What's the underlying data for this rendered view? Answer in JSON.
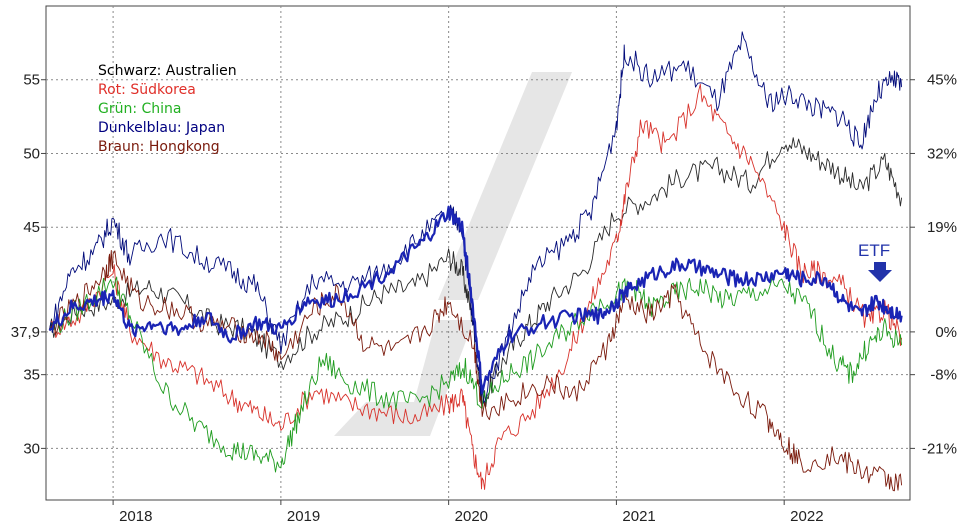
{
  "chart_data": {
    "type": "line",
    "title": "",
    "xlabel": "",
    "ylabel": "",
    "x_ticks": [
      "2018",
      "2019",
      "2020",
      "2021",
      "2022"
    ],
    "x_range": [
      2017.6,
      2022.75
    ],
    "y_range": [
      26.5,
      60
    ],
    "y_ticks_left": [
      {
        "value": 55,
        "label": "55"
      },
      {
        "value": 50,
        "label": "50"
      },
      {
        "value": 45,
        "label": "45"
      },
      {
        "value": 37.9,
        "label": "37,9"
      },
      {
        "value": 35,
        "label": "35"
      },
      {
        "value": 30,
        "label": "30"
      }
    ],
    "y_ticks_right": [
      {
        "value": 55,
        "label": "45%"
      },
      {
        "value": 50,
        "label": "32%"
      },
      {
        "value": 45,
        "label": "19%"
      },
      {
        "value": 37.9,
        "label": "0%"
      },
      {
        "value": 35,
        "label": "-8%"
      },
      {
        "value": 30,
        "label": "-21%"
      }
    ],
    "grid": true,
    "legend": [
      {
        "label": "Schwarz: Australien",
        "color": "#000000"
      },
      {
        "label": "Rot: Südkorea",
        "color": "#e0302a"
      },
      {
        "label": "Grün: China",
        "color": "#22b022"
      },
      {
        "label": "Dunkelblau: Japan",
        "color": "#000080"
      },
      {
        "label": "Braun: Hongkong",
        "color": "#7a1a0c"
      }
    ],
    "legend_position": "top-left",
    "annotation": {
      "text": "ETF",
      "color": "#2233aa"
    },
    "series": [
      {
        "key": "australien",
        "color": "#2a2a2a",
        "width": 0.9,
        "x": [
          2017.62,
          2017.8,
          2018.0,
          2018.2,
          2018.4,
          2018.6,
          2018.8,
          2019.0,
          2019.2,
          2019.4,
          2019.6,
          2019.8,
          2020.0,
          2020.08,
          2020.14,
          2020.2,
          2020.3,
          2020.45,
          2020.6,
          2020.8,
          2021.0,
          2021.2,
          2021.4,
          2021.6,
          2021.8,
          2022.0,
          2022.15,
          2022.3,
          2022.45,
          2022.6,
          2022.7
        ],
        "y": [
          38,
          39.5,
          40,
          41,
          40,
          38.5,
          38,
          36,
          38,
          39,
          40.5,
          41,
          43,
          42,
          39,
          33,
          35.5,
          38,
          40,
          42,
          46,
          47,
          48.5,
          49,
          48,
          51,
          50,
          49,
          47.5,
          49.5,
          47
        ]
      },
      {
        "key": "suedkorea",
        "color": "#d8332c",
        "width": 0.9,
        "x": [
          2017.62,
          2017.8,
          2018.0,
          2018.1,
          2018.3,
          2018.5,
          2018.7,
          2018.85,
          2019.0,
          2019.2,
          2019.4,
          2019.6,
          2019.8,
          2020.0,
          2020.08,
          2020.14,
          2020.2,
          2020.3,
          2020.5,
          2020.7,
          2020.85,
          2021.0,
          2021.05,
          2021.15,
          2021.3,
          2021.5,
          2021.65,
          2021.8,
          2022.0,
          2022.1,
          2022.2,
          2022.35,
          2022.5,
          2022.6,
          2022.7
        ],
        "y": [
          38,
          39,
          42,
          38,
          36,
          35,
          33.5,
          32.5,
          31.5,
          34,
          33,
          32.5,
          32,
          33,
          33.5,
          30,
          27.5,
          30.5,
          32.5,
          36,
          40,
          44,
          47,
          52,
          50.5,
          54,
          51.5,
          49.5,
          45,
          42,
          42,
          41,
          38.5,
          39.5,
          37.5
        ]
      },
      {
        "key": "china",
        "color": "#1f9c1f",
        "width": 0.9,
        "x": [
          2017.62,
          2017.8,
          2018.0,
          2018.1,
          2018.3,
          2018.5,
          2018.7,
          2018.85,
          2019.0,
          2019.1,
          2019.25,
          2019.4,
          2019.6,
          2019.8,
          2020.0,
          2020.1,
          2020.2,
          2020.35,
          2020.5,
          2020.7,
          2020.85,
          2021.0,
          2021.1,
          2021.2,
          2021.35,
          2021.5,
          2021.65,
          2021.8,
          2022.0,
          2022.15,
          2022.3,
          2022.4,
          2022.5,
          2022.6,
          2022.7
        ],
        "y": [
          38,
          39.5,
          41.5,
          39,
          34,
          31.5,
          30,
          29.5,
          29,
          32,
          36,
          34.5,
          33.5,
          33,
          34.5,
          35.5,
          33,
          35,
          36,
          38,
          39.5,
          40.5,
          41,
          39.5,
          40.5,
          41,
          40,
          40.5,
          41,
          39.5,
          36,
          35,
          37,
          38,
          37
        ]
      },
      {
        "key": "japan",
        "color": "#000a7a",
        "width": 0.9,
        "x": [
          2017.62,
          2017.75,
          2017.9,
          2018.0,
          2018.1,
          2018.3,
          2018.5,
          2018.7,
          2018.85,
          2019.0,
          2019.2,
          2019.4,
          2019.6,
          2019.8,
          2020.0,
          2020.08,
          2020.14,
          2020.2,
          2020.35,
          2020.5,
          2020.7,
          2020.85,
          2021.0,
          2021.05,
          2021.2,
          2021.4,
          2021.6,
          2021.75,
          2021.9,
          2022.05,
          2022.2,
          2022.35,
          2022.45,
          2022.55,
          2022.65,
          2022.7
        ],
        "y": [
          38,
          42,
          43.5,
          45.5,
          43,
          44.5,
          43,
          42,
          41,
          37,
          41.5,
          41,
          42,
          44,
          46,
          45,
          39,
          33.5,
          37.5,
          42,
          44,
          46,
          52,
          57,
          55,
          56,
          53.5,
          57.5,
          53.5,
          54,
          53,
          52.5,
          50.5,
          54,
          55,
          54.5
        ]
      },
      {
        "key": "hongkong",
        "color": "#7a1a0c",
        "width": 0.9,
        "x": [
          2017.62,
          2017.8,
          2017.95,
          2018.0,
          2018.15,
          2018.35,
          2018.55,
          2018.75,
          2018.9,
          2019.0,
          2019.2,
          2019.35,
          2019.5,
          2019.7,
          2019.9,
          2020.0,
          2020.15,
          2020.2,
          2020.4,
          2020.6,
          2020.75,
          2020.95,
          2021.05,
          2021.2,
          2021.35,
          2021.5,
          2021.7,
          2021.9,
          2022.0,
          2022.1,
          2022.3,
          2022.45,
          2022.6,
          2022.7
        ],
        "y": [
          38,
          40,
          42,
          43,
          40,
          39.5,
          38.5,
          38,
          37.5,
          36,
          39.5,
          40.5,
          37,
          36.5,
          38.5,
          40,
          37,
          32.5,
          33.5,
          34.5,
          33.5,
          37,
          40,
          39,
          40.5,
          37,
          34,
          32,
          30.5,
          29,
          29.5,
          28.5,
          28,
          27.5
        ]
      },
      {
        "key": "etf",
        "color": "#1a24b4",
        "width": 2.2,
        "x": [
          2017.62,
          2017.75,
          2017.9,
          2018.0,
          2018.1,
          2018.25,
          2018.4,
          2018.55,
          2018.7,
          2018.85,
          2019.0,
          2019.15,
          2019.3,
          2019.5,
          2019.7,
          2019.85,
          2020.0,
          2020.08,
          2020.14,
          2020.2,
          2020.35,
          2020.55,
          2020.75,
          2020.9,
          2021.0,
          2021.1,
          2021.25,
          2021.4,
          2021.55,
          2021.7,
          2021.85,
          2022.0,
          2022.1,
          2022.25,
          2022.35,
          2022.45,
          2022.55,
          2022.62,
          2022.7
        ],
        "y": [
          38,
          39.5,
          40,
          40.5,
          38,
          38.5,
          38,
          39,
          37.5,
          38.5,
          38,
          40,
          40,
          41,
          42.5,
          44,
          46,
          45,
          40,
          34,
          37.5,
          38.5,
          39,
          39,
          40,
          41,
          42,
          42.5,
          42,
          41.5,
          41.5,
          42,
          41.5,
          41.5,
          40,
          39,
          40,
          39.5,
          39
        ]
      }
    ]
  }
}
